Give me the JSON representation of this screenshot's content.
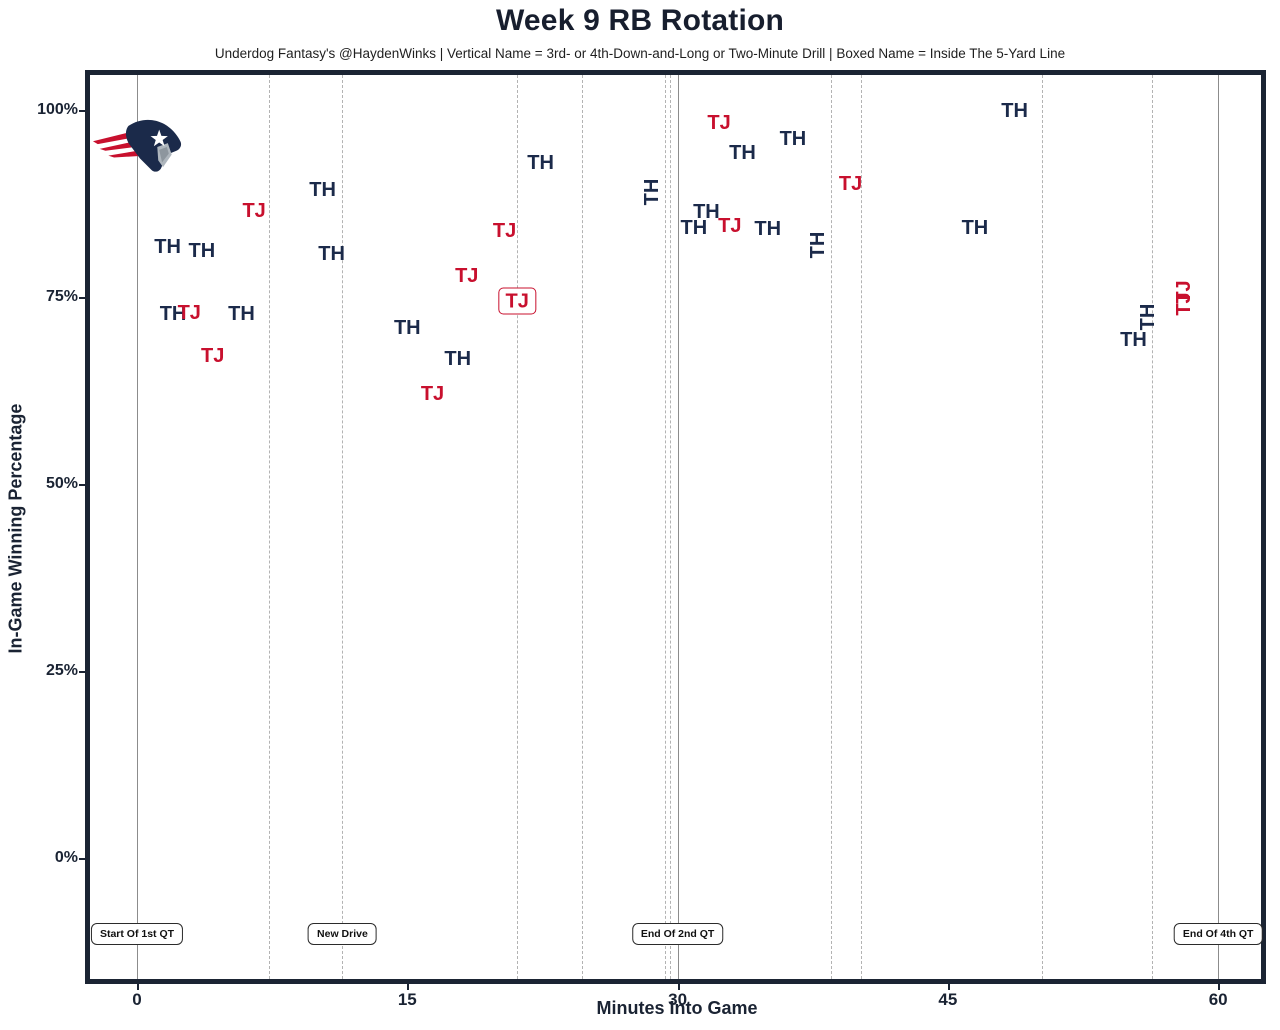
{
  "page": {
    "title": "Week 9 RB Rotation",
    "subtitle": "Underdog Fantasy's @HaydenWinks | Vertical Name = 3rd- or 4th-Down-and-Long or Two-Minute Drill | Boxed Name = Inside The 5-Yard Line"
  },
  "colors": {
    "th_navy": "#1b2a4a",
    "tj_red": "#c8102e",
    "plot_border": "#1b2433",
    "solid_gridline": "#8c8c8c",
    "dashed_gridline": "#b3b3b3"
  },
  "logo": {
    "team": "New England Patriots"
  },
  "chart_data": {
    "type": "scatter",
    "title": "Week 9 RB Rotation",
    "subtitle": "Underdog Fantasy's @HaydenWinks | Vertical Name = 3rd- or 4th-Down-and-Long or Two-Minute Drill | Boxed Name = Inside The 5-Yard Line",
    "xlabel": "Minutes Into Game",
    "ylabel": "In-Game Winning Percentage",
    "x_ticks": [
      {
        "value": 0,
        "label": "0"
      },
      {
        "value": 15,
        "label": "15"
      },
      {
        "value": 30,
        "label": "30"
      },
      {
        "value": 45,
        "label": "45"
      },
      {
        "value": 60,
        "label": "60"
      }
    ],
    "y_ticks": [
      {
        "value": 0,
        "label": "0%"
      },
      {
        "value": 25,
        "label": "25%"
      },
      {
        "value": 50,
        "label": "50%"
      },
      {
        "value": 75,
        "label": "75%"
      },
      {
        "value": 100,
        "label": "100%"
      }
    ],
    "xlim": [
      -2.9,
      62.7
    ],
    "ylim": [
      -17,
      102
    ],
    "grid": "vertical-only",
    "legend": "none",
    "vlines_solid_min": [
      0,
      30,
      60
    ],
    "vlines_dashed_min": [
      7.3,
      11.4,
      21.1,
      24.7,
      29.3,
      29.6,
      38.5,
      40.2,
      50.2,
      56.3
    ],
    "series": [
      {
        "name": "TH",
        "color": "#1b2a4a",
        "points": [
          {
            "x": 1.7,
            "y": 81.7
          },
          {
            "x": 2.0,
            "y": 72.7
          },
          {
            "x": 3.6,
            "y": 81.2
          },
          {
            "x": 5.8,
            "y": 72.7
          },
          {
            "x": 10.3,
            "y": 89.3
          },
          {
            "x": 10.8,
            "y": 80.7
          },
          {
            "x": 15.0,
            "y": 70.9
          },
          {
            "x": 17.8,
            "y": 66.7
          },
          {
            "x": 22.4,
            "y": 92.9
          },
          {
            "x": 28.6,
            "y": 89.1,
            "rotated": true
          },
          {
            "x": 30.9,
            "y": 84.2
          },
          {
            "x": 31.6,
            "y": 86.4
          },
          {
            "x": 33.6,
            "y": 94.2
          },
          {
            "x": 35.0,
            "y": 84.1
          },
          {
            "x": 36.4,
            "y": 96.1
          },
          {
            "x": 37.8,
            "y": 81.9,
            "rotated": true
          },
          {
            "x": 46.5,
            "y": 84.2
          },
          {
            "x": 48.7,
            "y": 99.9
          },
          {
            "x": 55.3,
            "y": 69.2
          },
          {
            "x": 56.1,
            "y": 72.3,
            "rotated": true
          }
        ]
      },
      {
        "name": "TJ",
        "color": "#c8102e",
        "points": [
          {
            "x": 2.9,
            "y": 72.8
          },
          {
            "x": 4.2,
            "y": 67.1
          },
          {
            "x": 6.5,
            "y": 86.5
          },
          {
            "x": 16.4,
            "y": 62.0
          },
          {
            "x": 18.3,
            "y": 77.8
          },
          {
            "x": 20.4,
            "y": 83.8
          },
          {
            "x": 21.1,
            "y": 74.4,
            "boxed": true
          },
          {
            "x": 32.3,
            "y": 98.3
          },
          {
            "x": 32.9,
            "y": 84.5
          },
          {
            "x": 39.6,
            "y": 90.1
          },
          {
            "x": 58.1,
            "y": 75.7,
            "rotated": true
          },
          {
            "x": 58.1,
            "y": 74.0,
            "rotated": true
          }
        ]
      }
    ],
    "annotations": [
      {
        "label": "Start Of 1st QT",
        "x": 0
      },
      {
        "label": "New Drive",
        "x": 11.4
      },
      {
        "label": "End Of 2nd QT",
        "x": 30
      },
      {
        "label": "End Of 4th QT",
        "x": 60
      }
    ]
  }
}
